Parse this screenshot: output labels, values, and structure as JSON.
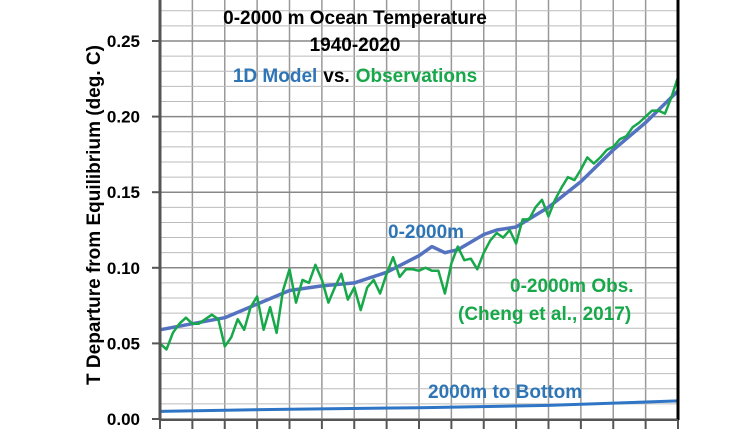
{
  "chart_data": {
    "type": "line",
    "title": [
      "0-2000 m Ocean Temperature",
      "1940-2020"
    ],
    "subtitle": {
      "part1": "1D Model",
      "part2": "vs.",
      "part3": "Observations"
    },
    "ylabel": "T Departure from Equilibrium (deg. C)",
    "xlabel": "",
    "xlim": [
      1940,
      2020
    ],
    "ylim": [
      0,
      0.277
    ],
    "yticks": [
      "0.00",
      "0.05",
      "0.10",
      "0.15",
      "0.20",
      "0.25"
    ],
    "x_grid_step": 5,
    "y_grid_step": 0.01,
    "grid": true,
    "colors": {
      "model": "#5472c0",
      "observations": "#17a84a",
      "bottom": "#2e75c6",
      "model_label": "#2e75b6"
    },
    "annotations": {
      "model": "0-2000m",
      "obs_line1": "0-2000m Obs.",
      "obs_line2": "(Cheng et al., 2017)",
      "bottom": "2000m to Bottom"
    },
    "series": [
      {
        "key": "model",
        "x": [
          1940,
          1945,
          1950,
          1955,
          1960,
          1965,
          1970,
          1975,
          1980,
          1982,
          1984,
          1986,
          1990,
          1992,
          1995,
          2000,
          2005,
          2010,
          2015,
          2020
        ],
        "y": [
          0.059,
          0.063,
          0.067,
          0.076,
          0.085,
          0.088,
          0.09,
          0.097,
          0.108,
          0.114,
          0.11,
          0.112,
          0.122,
          0.125,
          0.127,
          0.14,
          0.157,
          0.178,
          0.196,
          0.217
        ]
      },
      {
        "key": "observations",
        "x": [
          1940,
          1941,
          1942,
          1943,
          1944,
          1945,
          1946,
          1947,
          1948,
          1949,
          1950,
          1951,
          1952,
          1953,
          1954,
          1955,
          1956,
          1957,
          1958,
          1959,
          1960,
          1961,
          1962,
          1963,
          1964,
          1965,
          1966,
          1967,
          1968,
          1969,
          1970,
          1971,
          1972,
          1973,
          1974,
          1975,
          1976,
          1977,
          1978,
          1979,
          1980,
          1981,
          1982,
          1983,
          1984,
          1985,
          1986,
          1987,
          1988,
          1989,
          1990,
          1991,
          1992,
          1993,
          1994,
          1995,
          1996,
          1997,
          1998,
          1999,
          2000,
          2001,
          2002,
          2003,
          2004,
          2005,
          2006,
          2007,
          2008,
          2009,
          2010,
          2011,
          2012,
          2013,
          2014,
          2015,
          2016,
          2017,
          2018,
          2019,
          2020
        ],
        "y": [
          0.05,
          0.046,
          0.057,
          0.063,
          0.067,
          0.063,
          0.063,
          0.066,
          0.069,
          0.066,
          0.048,
          0.054,
          0.066,
          0.059,
          0.074,
          0.081,
          0.059,
          0.074,
          0.057,
          0.085,
          0.099,
          0.077,
          0.092,
          0.09,
          0.102,
          0.092,
          0.077,
          0.087,
          0.096,
          0.079,
          0.087,
          0.072,
          0.087,
          0.092,
          0.083,
          0.096,
          0.107,
          0.094,
          0.099,
          0.099,
          0.098,
          0.1,
          0.098,
          0.098,
          0.083,
          0.103,
          0.114,
          0.105,
          0.106,
          0.099,
          0.11,
          0.118,
          0.123,
          0.12,
          0.125,
          0.116,
          0.132,
          0.132,
          0.14,
          0.145,
          0.134,
          0.145,
          0.153,
          0.16,
          0.158,
          0.165,
          0.173,
          0.169,
          0.173,
          0.178,
          0.18,
          0.185,
          0.187,
          0.193,
          0.196,
          0.2,
          0.204,
          0.204,
          0.202,
          0.213,
          0.226
        ]
      },
      {
        "key": "bottom",
        "x": [
          1940,
          1960,
          1980,
          2000,
          2020
        ],
        "y": [
          0.005,
          0.0065,
          0.0075,
          0.009,
          0.012
        ]
      }
    ]
  }
}
